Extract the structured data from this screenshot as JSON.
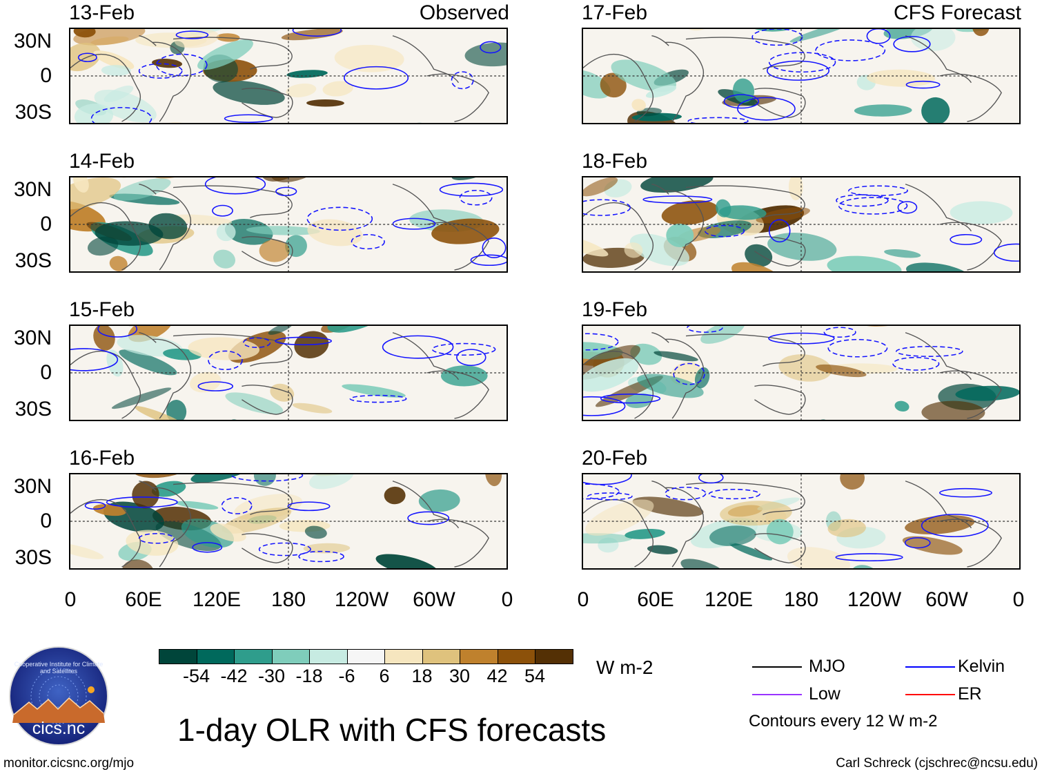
{
  "columns": {
    "left_title": "Observed",
    "right_title": "CFS Forecast"
  },
  "panels": {
    "left": [
      "13-Feb",
      "14-Feb",
      "15-Feb",
      "16-Feb"
    ],
    "right": [
      "17-Feb",
      "18-Feb",
      "19-Feb",
      "20-Feb"
    ]
  },
  "lat_labels": [
    "30N",
    "0",
    "30S"
  ],
  "lon_labels": [
    "0",
    "60E",
    "120E",
    "180",
    "120W",
    "60W",
    "0"
  ],
  "colorbar": {
    "colors": [
      "#00453a",
      "#00695c",
      "#2f9d8c",
      "#7fcdbb",
      "#c7ebe2",
      "#f6f6f6",
      "#f6e6bf",
      "#dfc27d",
      "#bf812d",
      "#8c510a",
      "#543005"
    ],
    "ticks": [
      "-54",
      "-42",
      "-30",
      "-18",
      "-6",
      "6",
      "18",
      "30",
      "42",
      "54"
    ],
    "units": "W m-2"
  },
  "legend": {
    "items": [
      {
        "label": "MJO",
        "color": "#000000"
      },
      {
        "label": "Kelvin",
        "color": "#0000ff"
      },
      {
        "label": "Low",
        "color": "#9933ff"
      },
      {
        "label": "ER",
        "color": "#ff0000"
      }
    ],
    "contour_note": "Contours every 12 W m-2"
  },
  "title": "1-day OLR with CFS forecasts",
  "logo_text": "cics.nc",
  "logo_ring": "Cooperative Institute for Climate and Satellites",
  "footer_left": "monitor.cicsnc.org/mjo",
  "footer_right": "Carl Schreck (cjschrec@ncsu.edu)"
}
